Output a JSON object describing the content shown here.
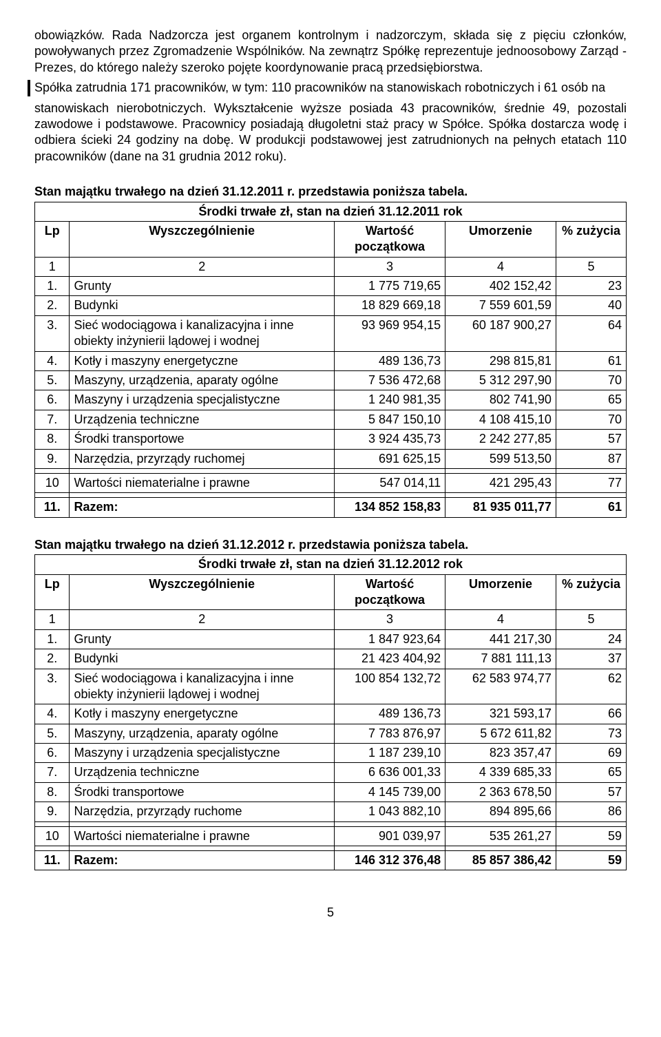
{
  "paragraph": {
    "part1": "obowiązków. Rada Nadzorcza jest organem kontrolnym i nadzorczym, składa się z  pięciu członków, powoływanych przez Zgromadzenie Wspólników. Na zewnątrz Spółkę reprezentuje jednoosobowy Zarząd - Prezes,  do którego należy szeroko pojęte koordynowanie pracą przedsiębiorstwa.",
    "part2_changebar": "Spółka zatrudnia 171 pracowników, w tym: 110 pracowników na stanowiskach robotniczych i  61 osób na",
    "part3": "stanowiskach  nierobotniczych. Wykształcenie wyższe posiada 43 pracowników, średnie 49, pozostali zawodowe i podstawowe. Pracownicy posiadają długoletni staż pracy w Spółce. Spółka dostarcza wodę i odbiera ścieki 24 godziny na dobę.  W produkcji podstawowej jest zatrudnionych na pełnych etatach 110 pracowników (dane na 31 grudnia 2012 roku)."
  },
  "table1": {
    "section_title": "Stan majątku trwałego na dzień 31.12.2011 r. przedstawia poniższa tabela.",
    "caption": "Środki trwałe   zł,  stan na dzień 31.12.2011 rok",
    "headers": {
      "lp": "Lp",
      "name": "Wyszczególnienie",
      "v1": "Wartość początkowa",
      "v2": "Umorzenie",
      "p": "% zużycia"
    },
    "colnums": [
      "1",
      "2",
      "3",
      "4",
      "5"
    ],
    "rows": [
      {
        "lp": "1.",
        "name": "Grunty",
        "v1": "1 775 719,65",
        "v2": "402 152,42",
        "p": "23"
      },
      {
        "lp": "2.",
        "name": "Budynki",
        "v1": "18 829 669,18",
        "v2": "7 559 601,59",
        "p": "40"
      },
      {
        "lp": "3.",
        "name": "Sieć wodociągowa i kanalizacyjna i inne obiekty inżynierii lądowej i wodnej",
        "v1": "93 969 954,15",
        "v2": "60 187 900,27",
        "p": "64"
      },
      {
        "lp": "4.",
        "name": "Kotły i maszyny energetyczne",
        "v1": "489 136,73",
        "v2": "298 815,81",
        "p": "61"
      },
      {
        "lp": "5.",
        "name": "Maszyny, urządzenia, aparaty ogólne",
        "v1": "7 536 472,68",
        "v2": "5 312 297,90",
        "p": "70"
      },
      {
        "lp": "6.",
        "name": "Maszyny i urządzenia specjalistyczne",
        "v1": "1 240 981,35",
        "v2": "802 741,90",
        "p": "65"
      },
      {
        "lp": "7.",
        "name": "Urządzenia techniczne",
        "v1": "5 847 150,10",
        "v2": "4 108 415,10",
        "p": "70"
      },
      {
        "lp": "8.",
        "name": "Środki transportowe",
        "v1": "3 924 435,73",
        "v2": "2 242 277,85",
        "p": "57"
      },
      {
        "lp": "9.",
        "name": "Narzędzia, przyrządy ruchomej",
        "v1": "691 625,15",
        "v2": "599 513,50",
        "p": "87"
      }
    ],
    "row10": {
      "lp": "10",
      "name": "Wartości niematerialne i prawne",
      "v1": "547 014,11",
      "v2": "421 295,43",
      "p": "77"
    },
    "total": {
      "lp": "11.",
      "name": "Razem:",
      "v1": "134 852 158,83",
      "v2": "81 935 011,77",
      "p": "61"
    }
  },
  "table2": {
    "section_title": "Stan majątku trwałego na dzień 31.12.2012 r. przedstawia poniższa tabela.",
    "caption": "Środki trwałe  zł,  stan na dzień 31.12.2012 rok",
    "headers": {
      "lp": "Lp",
      "name": "Wyszczególnienie",
      "v1": "Wartość początkowa",
      "v2": "Umorzenie",
      "p": "% zużycia"
    },
    "colnums": [
      "1",
      "2",
      "3",
      "4",
      "5"
    ],
    "rows": [
      {
        "lp": "1.",
        "name": "Grunty",
        "v1": "1 847 923,64",
        "v2": "441 217,30",
        "p": "24"
      },
      {
        "lp": "2.",
        "name": "Budynki",
        "v1": "21 423 404,92",
        "v2": "7 881 111,13",
        "p": "37"
      },
      {
        "lp": "3.",
        "name": "Sieć wodociągowa i kanalizacyjna i inne obiekty inżynierii lądowej i wodnej",
        "v1": "100 854 132,72",
        "v2": "62 583 974,77",
        "p": "62"
      },
      {
        "lp": "4.",
        "name": "Kotły i maszyny energetyczne",
        "v1": "489 136,73",
        "v2": "321 593,17",
        "p": "66"
      },
      {
        "lp": "5.",
        "name": "Maszyny, urządzenia, aparaty ogólne",
        "v1": "7 783 876,97",
        "v2": "5 672 611,82",
        "p": "73"
      },
      {
        "lp": "6.",
        "name": "Maszyny i urządzenia specjalistyczne",
        "v1": "1 187 239,10",
        "v2": "823 357,47",
        "p": "69"
      },
      {
        "lp": "7.",
        "name": "Urządzenia techniczne",
        "v1": "6 636 001,33",
        "v2": "4 339 685,33",
        "p": "65"
      },
      {
        "lp": "8.",
        "name": "Środki transportowe",
        "v1": "4 145 739,00",
        "v2": "2 363 678,50",
        "p": "57"
      },
      {
        "lp": "9.",
        "name": "Narzędzia, przyrządy ruchome",
        "v1": "1 043 882,10",
        "v2": "894 895,66",
        "p": "86"
      }
    ],
    "row10": {
      "lp": "10",
      "name": "Wartości niematerialne i prawne",
      "v1": "901 039,97",
      "v2": "535 261,27",
      "p": "59"
    },
    "total": {
      "lp": "11.",
      "name": "Razem:",
      "v1": "146 312 376,48",
      "v2": "85 857 386,42",
      "p": "59"
    }
  },
  "page_number": "5"
}
